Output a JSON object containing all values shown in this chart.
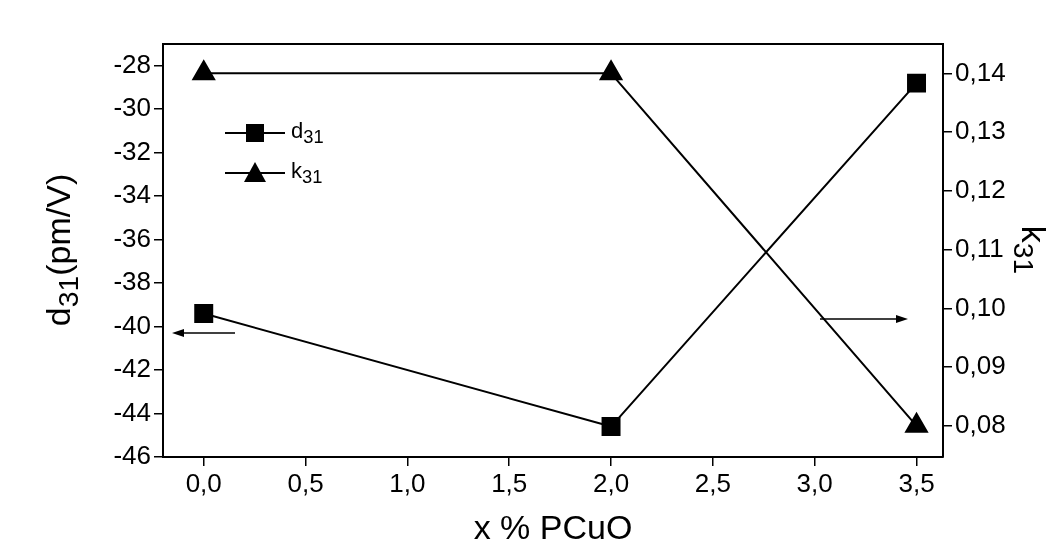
{
  "chart_data": {
    "type": "line",
    "xlabel": "x % PCuO",
    "ylabel": "d$_{31}$(pm/V)",
    "y2label": "k$_{31}$",
    "x": [
      0,
      2,
      3.5
    ],
    "series": [
      {
        "name": "d$_{31}$",
        "color": "#000000",
        "marker": "square",
        "values": [
          -39.4,
          -44.6,
          -28.8
        ]
      },
      {
        "name": "k$_{31}$",
        "color": "#000000",
        "marker": "triangle",
        "axis": "y2",
        "values": [
          0.14,
          0.14,
          0.08
        ]
      }
    ],
    "xlim": [
      -0.2,
      3.63
    ],
    "xticks": [
      {
        "value": 0,
        "label": "0,0"
      },
      {
        "value": 0.5,
        "label": "0,5"
      },
      {
        "value": 1,
        "label": "1,0"
      },
      {
        "value": 1.5,
        "label": "1,5"
      },
      {
        "value": 2,
        "label": "2,0"
      },
      {
        "value": 2.5,
        "label": "2,5"
      },
      {
        "value": 3,
        "label": "3,0"
      },
      {
        "value": 3.5,
        "label": "3,5"
      }
    ],
    "ylim": [
      -46,
      -27
    ],
    "yticks": [
      -46,
      -44,
      -42,
      -40,
      -38,
      -36,
      -34,
      -32,
      -30,
      -28
    ],
    "y2lim": [
      0.0747,
      0.145
    ],
    "y2ticks": [
      {
        "value": 0.08,
        "label": "0,08"
      },
      {
        "value": 0.09,
        "label": "0,09"
      },
      {
        "value": 0.1,
        "label": "0,10"
      },
      {
        "value": 0.11,
        "label": "0,11"
      },
      {
        "value": 0.12,
        "label": "0,12"
      },
      {
        "value": 0.13,
        "label": "0,13"
      },
      {
        "value": 0.14,
        "label": "0,14"
      }
    ],
    "grid": false,
    "legend": "top left",
    "line_style": "solid"
  }
}
